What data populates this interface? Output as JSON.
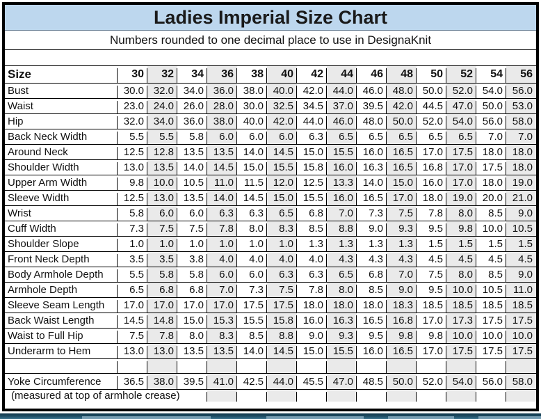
{
  "title": "Ladies Imperial Size Chart",
  "subtitle": "Numbers rounded to one decimal place to use in DesignaKnit",
  "colors": {
    "title_bg": "#BDD7EE",
    "column_shade": "#EAEAEA",
    "grid": "#000000",
    "strip_dark": "#10374A",
    "strip_mid": "#3D748F",
    "strip_light": "#8FB2C5"
  },
  "table": {
    "header": [
      "Size",
      "30",
      "32",
      "34",
      "36",
      "38",
      "40",
      "42",
      "44",
      "46",
      "48",
      "50",
      "52",
      "54",
      "56"
    ],
    "rows": [
      {
        "label": "Bust",
        "values": [
          "30.0",
          "32.0",
          "34.0",
          "36.0",
          "38.0",
          "40.0",
          "42.0",
          "44.0",
          "46.0",
          "48.0",
          "50.0",
          "52.0",
          "54.0",
          "56.0"
        ]
      },
      {
        "label": "Waist",
        "values": [
          "23.0",
          "24.0",
          "26.0",
          "28.0",
          "30.0",
          "32.5",
          "34.5",
          "37.0",
          "39.5",
          "42.0",
          "44.5",
          "47.0",
          "50.0",
          "53.0"
        ]
      },
      {
        "label": "Hip",
        "values": [
          "32.0",
          "34.0",
          "36.0",
          "38.0",
          "40.0",
          "42.0",
          "44.0",
          "46.0",
          "48.0",
          "50.0",
          "52.0",
          "54.0",
          "56.0",
          "58.0"
        ]
      },
      {
        "label": "Back Neck Width",
        "values": [
          "5.5",
          "5.5",
          "5.8",
          "6.0",
          "6.0",
          "6.0",
          "6.3",
          "6.5",
          "6.5",
          "6.5",
          "6.5",
          "6.5",
          "7.0",
          "7.0"
        ]
      },
      {
        "label": "Around Neck",
        "values": [
          "12.5",
          "12.8",
          "13.5",
          "13.5",
          "14.0",
          "14.5",
          "15.0",
          "15.5",
          "16.0",
          "16.5",
          "17.0",
          "17.5",
          "18.0",
          "18.0"
        ]
      },
      {
        "label": "Shoulder Width",
        "values": [
          "13.0",
          "13.5",
          "14.0",
          "14.5",
          "15.0",
          "15.5",
          "15.8",
          "16.0",
          "16.3",
          "16.5",
          "16.8",
          "17.0",
          "17.5",
          "18.0"
        ]
      },
      {
        "label": "Upper Arm Width",
        "values": [
          "9.8",
          "10.0",
          "10.5",
          "11.0",
          "11.5",
          "12.0",
          "12.5",
          "13.3",
          "14.0",
          "15.0",
          "16.0",
          "17.0",
          "18.0",
          "19.0"
        ]
      },
      {
        "label": "Sleeve Width",
        "values": [
          "12.5",
          "13.0",
          "13.5",
          "14.0",
          "14.5",
          "15.0",
          "15.5",
          "16.0",
          "16.5",
          "17.0",
          "18.0",
          "19.0",
          "20.0",
          "21.0"
        ]
      },
      {
        "label": "Wrist",
        "values": [
          "5.8",
          "6.0",
          "6.0",
          "6.3",
          "6.3",
          "6.5",
          "6.8",
          "7.0",
          "7.3",
          "7.5",
          "7.8",
          "8.0",
          "8.5",
          "9.0"
        ]
      },
      {
        "label": "Cuff Width",
        "values": [
          "7.3",
          "7.5",
          "7.5",
          "7.8",
          "8.0",
          "8.3",
          "8.5",
          "8.8",
          "9.0",
          "9.3",
          "9.5",
          "9.8",
          "10.0",
          "10.5"
        ]
      },
      {
        "label": "Shoulder Slope",
        "values": [
          "1.0",
          "1.0",
          "1.0",
          "1.0",
          "1.0",
          "1.0",
          "1.3",
          "1.3",
          "1.3",
          "1.3",
          "1.5",
          "1.5",
          "1.5",
          "1.5"
        ]
      },
      {
        "label": "Front Neck Depth",
        "values": [
          "3.5",
          "3.5",
          "3.8",
          "4.0",
          "4.0",
          "4.0",
          "4.0",
          "4.3",
          "4.3",
          "4.3",
          "4.5",
          "4.5",
          "4.5",
          "4.5"
        ]
      },
      {
        "label": "Body Armhole Depth",
        "values": [
          "5.5",
          "5.8",
          "5.8",
          "6.0",
          "6.0",
          "6.3",
          "6.3",
          "6.5",
          "6.8",
          "7.0",
          "7.5",
          "8.0",
          "8.5",
          "9.0"
        ]
      },
      {
        "label": "Armhole Depth",
        "values": [
          "6.5",
          "6.8",
          "6.8",
          "7.0",
          "7.3",
          "7.5",
          "7.8",
          "8.0",
          "8.5",
          "9.0",
          "9.5",
          "10.0",
          "10.5",
          "11.0"
        ]
      },
      {
        "label": "Sleeve Seam Length",
        "values": [
          "17.0",
          "17.0",
          "17.0",
          "17.0",
          "17.5",
          "17.5",
          "18.0",
          "18.0",
          "18.0",
          "18.3",
          "18.5",
          "18.5",
          "18.5",
          "18.5"
        ]
      },
      {
        "label": "Back Waist Length",
        "values": [
          "14.5",
          "14.8",
          "15.0",
          "15.3",
          "15.5",
          "15.8",
          "16.0",
          "16.3",
          "16.5",
          "16.8",
          "17.0",
          "17.3",
          "17.5",
          "17.5"
        ]
      },
      {
        "label": "Waist to Full Hip",
        "values": [
          "7.5",
          "7.8",
          "8.0",
          "8.3",
          "8.5",
          "8.8",
          "9.0",
          "9.3",
          "9.5",
          "9.8",
          "9.8",
          "10.0",
          "10.0",
          "10.0"
        ]
      },
      {
        "label": "Underarm to Hem",
        "values": [
          "13.0",
          "13.0",
          "13.5",
          "13.5",
          "14.0",
          "14.5",
          "15.0",
          "15.5",
          "16.0",
          "16.5",
          "17.0",
          "17.5",
          "17.5",
          "17.5"
        ]
      }
    ],
    "yoke_row": {
      "label": "Yoke Circumference",
      "values": [
        "36.5",
        "38.0",
        "39.5",
        "41.0",
        "42.5",
        "44.0",
        "45.5",
        "47.0",
        "48.5",
        "50.0",
        "52.0",
        "54.0",
        "56.0",
        "58.0"
      ]
    },
    "footnote": "(measured at top of armhole crease)"
  }
}
